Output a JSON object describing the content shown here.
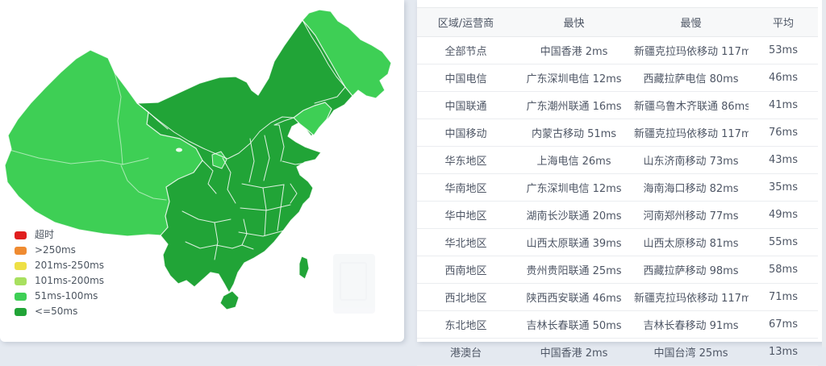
{
  "table": {
    "headers": [
      "区域/运营商",
      "最快",
      "最慢",
      "平均"
    ],
    "rows": [
      {
        "region": "全部节点",
        "fastest": "中国香港 2ms",
        "slowest": "新疆克拉玛依移动 117ms",
        "average": "53ms"
      },
      {
        "region": "中国电信",
        "fastest": "广东深圳电信 12ms",
        "slowest": "西藏拉萨电信 80ms",
        "average": "46ms"
      },
      {
        "region": "中国联通",
        "fastest": "广东潮州联通 16ms",
        "slowest": "新疆乌鲁木齐联通 86ms",
        "average": "41ms"
      },
      {
        "region": "中国移动",
        "fastest": "内蒙古移动 51ms",
        "slowest": "新疆克拉玛依移动 117ms",
        "average": "76ms"
      },
      {
        "region": "华东地区",
        "fastest": "上海电信 26ms",
        "slowest": "山东济南移动 73ms",
        "average": "43ms"
      },
      {
        "region": "华南地区",
        "fastest": "广东深圳电信 12ms",
        "slowest": "海南海口移动 82ms",
        "average": "35ms"
      },
      {
        "region": "华中地区",
        "fastest": "湖南长沙联通 20ms",
        "slowest": "河南郑州移动 77ms",
        "average": "49ms"
      },
      {
        "region": "华北地区",
        "fastest": "山西太原联通 39ms",
        "slowest": "山西太原移动 81ms",
        "average": "55ms"
      },
      {
        "region": "西南地区",
        "fastest": "贵州贵阳联通 25ms",
        "slowest": "西藏拉萨移动 98ms",
        "average": "58ms"
      },
      {
        "region": "西北地区",
        "fastest": "陕西西安联通 46ms",
        "slowest": "新疆克拉玛依移动 117ms",
        "average": "71ms"
      },
      {
        "region": "东北地区",
        "fastest": "吉林长春联通 50ms",
        "slowest": "吉林长春移动 91ms",
        "average": "67ms"
      },
      {
        "region": "港澳台",
        "fastest": "中国香港 2ms",
        "slowest": "中国台湾 25ms",
        "average": "13ms"
      }
    ]
  },
  "legend": {
    "items": [
      {
        "label": "超时",
        "color": "#e01e1e"
      },
      {
        "label": ">250ms",
        "color": "#ef8b31"
      },
      {
        "label": "201ms-250ms",
        "color": "#eee045"
      },
      {
        "label": "101ms-200ms",
        "color": "#a8e05f"
      },
      {
        "label": "51ms-100ms",
        "color": "#3ecf55"
      },
      {
        "label": "<=50ms",
        "color": "#21a437"
      }
    ]
  },
  "map": {
    "type": "choropleth-china-latency",
    "colors": {
      "latency_51_100ms": "#3ecf55",
      "latency_le_50ms": "#21a437",
      "border": "rgba(255,255,255,0.85)",
      "border_faint": "rgba(255,255,255,0.55)"
    },
    "regions_51_100ms": "新疆 西藏 青海 宁夏 黑龙江 辽宁",
    "regions_le_50ms": "其余省份(含海南、台湾)"
  }
}
